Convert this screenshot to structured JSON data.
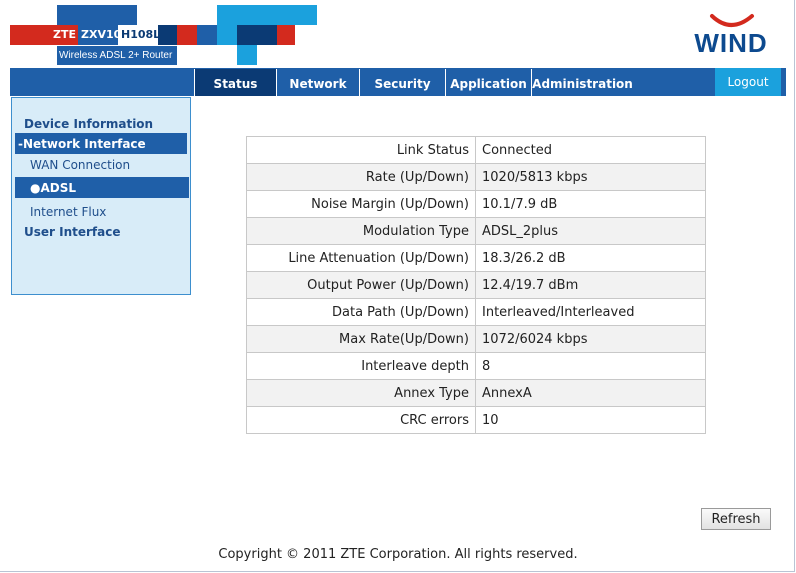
{
  "brand": {
    "zte_label": "ZTE",
    "model_label": "ZXV10",
    "model_code": "H108L",
    "subtitle": "Wireless ADSL 2+ Router",
    "operator": "WIND",
    "colors": {
      "red": "#d32a1e",
      "blue": "#1f5fa8",
      "dark_blue": "#0b3a74",
      "light_blue": "#1ba1dd"
    }
  },
  "nav": {
    "tabs": [
      {
        "label": "Status",
        "active": true
      },
      {
        "label": "Network",
        "active": false
      },
      {
        "label": "Security",
        "active": false
      },
      {
        "label": "Application",
        "active": false
      },
      {
        "label": "Administration",
        "active": false
      }
    ],
    "logout_label": "Logout"
  },
  "sidebar": {
    "device_information": "Device Information",
    "network_interface": "-Network Interface",
    "wan_connection": "WAN Connection",
    "adsl": "ADSL",
    "internet_flux": "Internet Flux",
    "user_interface": "User Interface"
  },
  "status_table": {
    "rows": [
      {
        "label": "Link Status",
        "value": "Connected"
      },
      {
        "label": "Rate (Up/Down)",
        "value": "1020/5813 kbps"
      },
      {
        "label": "Noise Margin (Up/Down)",
        "value": "10.1/7.9 dB"
      },
      {
        "label": "Modulation Type",
        "value": "ADSL_2plus"
      },
      {
        "label": "Line Attenuation (Up/Down)",
        "value": "18.3/26.2 dB"
      },
      {
        "label": "Output Power (Up/Down)",
        "value": "12.4/19.7 dBm"
      },
      {
        "label": "Data Path (Up/Down)",
        "value": "Interleaved/Interleaved"
      },
      {
        "label": "Max Rate(Up/Down)",
        "value": "1072/6024 kbps"
      },
      {
        "label": "Interleave depth",
        "value": "8"
      },
      {
        "label": "Annex Type",
        "value": "AnnexA"
      },
      {
        "label": "CRC errors",
        "value": "10"
      }
    ]
  },
  "refresh_label": "Refresh",
  "copyright": "Copyright © 2011 ZTE Corporation. All rights reserved."
}
